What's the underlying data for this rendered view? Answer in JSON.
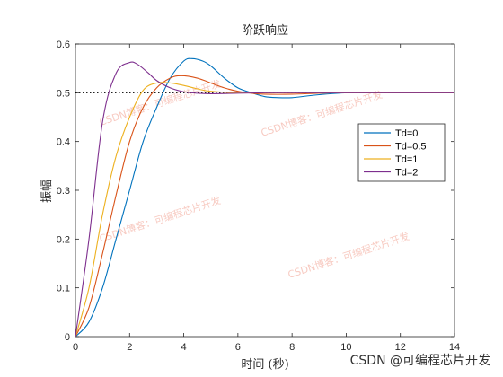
{
  "chart_data": {
    "type": "line",
    "title": "阶跃响应",
    "xlabel": "时间 (秒)",
    "ylabel": "振幅",
    "xlim": [
      0,
      14
    ],
    "ylim": [
      0,
      0.6
    ],
    "xticks": [
      "0",
      "2",
      "4",
      "6",
      "8",
      "10",
      "12",
      "14"
    ],
    "yticks": [
      "0",
      "0.1",
      "0.2",
      "0.3",
      "0.4",
      "0.5",
      "0.6"
    ],
    "reference_line": {
      "y": 0.5,
      "style": "dotted",
      "color": "#000000"
    },
    "legend": {
      "position": "right",
      "entries": [
        "Td=0",
        "Td=0.5",
        "Td=1",
        "Td=2"
      ]
    },
    "series": [
      {
        "name": "Td=0",
        "color": "#0072BD",
        "x": [
          0,
          0.5,
          1,
          1.5,
          2,
          2.5,
          3,
          3.5,
          4,
          4.3,
          4.7,
          5,
          5.5,
          6,
          6.5,
          7,
          7.5,
          8,
          8.5,
          9,
          10,
          11,
          12,
          14
        ],
        "y": [
          0,
          0.03,
          0.1,
          0.2,
          0.3,
          0.4,
          0.47,
          0.53,
          0.565,
          0.57,
          0.565,
          0.555,
          0.53,
          0.51,
          0.5,
          0.492,
          0.49,
          0.49,
          0.493,
          0.496,
          0.5,
          0.501,
          0.5,
          0.5
        ]
      },
      {
        "name": "Td=0.5",
        "color": "#D95319",
        "x": [
          0,
          0.5,
          1,
          1.5,
          2,
          2.5,
          3,
          3.5,
          3.9,
          4.5,
          5,
          5.5,
          6,
          6.5,
          7,
          8,
          9,
          10,
          12,
          14
        ],
        "y": [
          0,
          0.06,
          0.17,
          0.29,
          0.4,
          0.47,
          0.51,
          0.53,
          0.535,
          0.53,
          0.52,
          0.51,
          0.503,
          0.499,
          0.497,
          0.497,
          0.499,
          0.5,
          0.5,
          0.5
        ]
      },
      {
        "name": "Td=1",
        "color": "#EDB120",
        "x": [
          0,
          0.5,
          1,
          1.5,
          2,
          2.5,
          3,
          3.5,
          4,
          4.5,
          5,
          6,
          7,
          8,
          10,
          12,
          14
        ],
        "y": [
          0,
          0.1,
          0.25,
          0.37,
          0.45,
          0.505,
          0.52,
          0.52,
          0.515,
          0.508,
          0.503,
          0.5,
          0.5,
          0.5,
          0.5,
          0.5,
          0.5
        ]
      },
      {
        "name": "Td=2",
        "color": "#7E2F8E",
        "x": [
          0,
          0.5,
          1,
          1.5,
          2,
          2.3,
          2.7,
          3,
          3.5,
          4,
          4.5,
          5,
          6,
          7,
          8,
          10,
          12,
          14
        ],
        "y": [
          0,
          0.2,
          0.44,
          0.54,
          0.562,
          0.558,
          0.54,
          0.525,
          0.51,
          0.502,
          0.499,
          0.498,
          0.499,
          0.5,
          0.5,
          0.5,
          0.5,
          0.5
        ]
      }
    ]
  },
  "watermarks": [
    "CSDN博客：可编程芯片开发",
    "CSDN博客：可编程芯片开发",
    "CSDN博客：可编程芯片开发",
    "CSDN博客：可编程芯片开发"
  ],
  "footer": {
    "text": "CSDN @可编程芯片开发"
  }
}
